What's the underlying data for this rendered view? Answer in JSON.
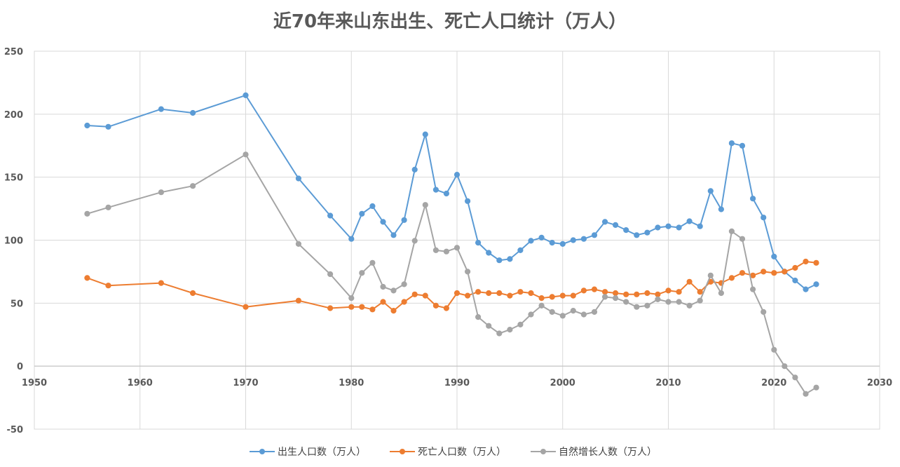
{
  "chart_data": {
    "type": "line",
    "title": "近70年来山东出生、死亡人口统计（万人）",
    "xlabel": "",
    "ylabel": "",
    "xlim": [
      1950,
      2030
    ],
    "ylim": [
      -50,
      250
    ],
    "xticks": [
      1950,
      1960,
      1970,
      1980,
      1990,
      2000,
      2010,
      2020,
      2030
    ],
    "yticks": [
      -50,
      0,
      50,
      100,
      150,
      200,
      250
    ],
    "grid": true,
    "legend_position": "bottom",
    "series": [
      {
        "name": "出生人口数（万人）",
        "color": "#5B9BD5",
        "points": [
          [
            1955,
            191
          ],
          [
            1957,
            190
          ],
          [
            1962,
            204
          ],
          [
            1965,
            201
          ],
          [
            1970,
            215
          ],
          [
            1975,
            149
          ],
          [
            1978,
            119.5
          ],
          [
            1980,
            101
          ],
          [
            1981,
            121
          ],
          [
            1982,
            127
          ],
          [
            1983,
            114.5
          ],
          [
            1984,
            104
          ],
          [
            1985,
            116
          ],
          [
            1986,
            156
          ],
          [
            1987,
            184
          ],
          [
            1988,
            140
          ],
          [
            1989,
            137
          ],
          [
            1990,
            152
          ],
          [
            1991,
            131
          ],
          [
            1992,
            98
          ],
          [
            1993,
            90
          ],
          [
            1994,
            84
          ],
          [
            1995,
            85
          ],
          [
            1996,
            92
          ],
          [
            1997,
            99.5
          ],
          [
            1998,
            102
          ],
          [
            1999,
            98
          ],
          [
            2000,
            97
          ],
          [
            2001,
            100
          ],
          [
            2002,
            101
          ],
          [
            2003,
            104
          ],
          [
            2004,
            114.5
          ],
          [
            2005,
            112
          ],
          [
            2006,
            108
          ],
          [
            2007,
            104
          ],
          [
            2008,
            106
          ],
          [
            2009,
            110
          ],
          [
            2010,
            111
          ],
          [
            2011,
            110
          ],
          [
            2012,
            115
          ],
          [
            2013,
            111
          ],
          [
            2014,
            139
          ],
          [
            2015,
            124.5
          ],
          [
            2016,
            177
          ],
          [
            2017,
            175
          ],
          [
            2018,
            133
          ],
          [
            2019,
            118
          ],
          [
            2020,
            87
          ],
          [
            2021,
            75
          ],
          [
            2022,
            68
          ],
          [
            2023,
            61
          ],
          [
            2024,
            65
          ]
        ]
      },
      {
        "name": "死亡人口数（万人）",
        "color": "#ED7D31",
        "points": [
          [
            1955,
            70
          ],
          [
            1957,
            64
          ],
          [
            1962,
            66
          ],
          [
            1965,
            58
          ],
          [
            1970,
            47
          ],
          [
            1975,
            52
          ],
          [
            1978,
            46
          ],
          [
            1980,
            47
          ],
          [
            1981,
            47
          ],
          [
            1982,
            45
          ],
          [
            1983,
            51
          ],
          [
            1984,
            44
          ],
          [
            1985,
            51
          ],
          [
            1986,
            57
          ],
          [
            1987,
            56
          ],
          [
            1988,
            48
          ],
          [
            1989,
            46
          ],
          [
            1990,
            58
          ],
          [
            1991,
            56
          ],
          [
            1992,
            59
          ],
          [
            1993,
            58
          ],
          [
            1994,
            58
          ],
          [
            1995,
            56
          ],
          [
            1996,
            59
          ],
          [
            1997,
            58
          ],
          [
            1998,
            54
          ],
          [
            1999,
            55
          ],
          [
            2000,
            56
          ],
          [
            2001,
            56
          ],
          [
            2002,
            60
          ],
          [
            2003,
            61
          ],
          [
            2004,
            59
          ],
          [
            2005,
            58
          ],
          [
            2006,
            57
          ],
          [
            2007,
            57
          ],
          [
            2008,
            58
          ],
          [
            2009,
            57
          ],
          [
            2010,
            60
          ],
          [
            2011,
            59
          ],
          [
            2012,
            67
          ],
          [
            2013,
            59
          ],
          [
            2014,
            67
          ],
          [
            2015,
            66
          ],
          [
            2016,
            70
          ],
          [
            2017,
            74
          ],
          [
            2018,
            72
          ],
          [
            2019,
            75
          ],
          [
            2020,
            74
          ],
          [
            2021,
            75
          ],
          [
            2022,
            78
          ],
          [
            2023,
            83
          ],
          [
            2024,
            82
          ]
        ]
      },
      {
        "name": "自然增长人数（万人）",
        "color": "#A5A5A5",
        "points": [
          [
            1955,
            121
          ],
          [
            1957,
            126
          ],
          [
            1962,
            138
          ],
          [
            1965,
            143
          ],
          [
            1970,
            168
          ],
          [
            1975,
            97
          ],
          [
            1978,
            73
          ],
          [
            1980,
            54
          ],
          [
            1981,
            74
          ],
          [
            1982,
            82
          ],
          [
            1983,
            63
          ],
          [
            1984,
            60
          ],
          [
            1985,
            65
          ],
          [
            1986,
            99.5
          ],
          [
            1987,
            128
          ],
          [
            1988,
            92
          ],
          [
            1989,
            91
          ],
          [
            1990,
            94
          ],
          [
            1991,
            75
          ],
          [
            1992,
            39
          ],
          [
            1993,
            32
          ],
          [
            1994,
            26
          ],
          [
            1995,
            29
          ],
          [
            1996,
            33
          ],
          [
            1997,
            41
          ],
          [
            1998,
            48
          ],
          [
            1999,
            43
          ],
          [
            2000,
            40
          ],
          [
            2001,
            44
          ],
          [
            2002,
            41
          ],
          [
            2003,
            43
          ],
          [
            2004,
            55
          ],
          [
            2005,
            54
          ],
          [
            2006,
            51
          ],
          [
            2007,
            47
          ],
          [
            2008,
            48
          ],
          [
            2009,
            53
          ],
          [
            2010,
            51
          ],
          [
            2011,
            51
          ],
          [
            2012,
            48
          ],
          [
            2013,
            52
          ],
          [
            2014,
            72
          ],
          [
            2015,
            58
          ],
          [
            2016,
            107
          ],
          [
            2017,
            101
          ],
          [
            2018,
            61
          ],
          [
            2019,
            43
          ],
          [
            2020,
            13
          ],
          [
            2021,
            0
          ],
          [
            2022,
            -9
          ],
          [
            2023,
            -22
          ],
          [
            2024,
            -17
          ]
        ]
      }
    ]
  }
}
